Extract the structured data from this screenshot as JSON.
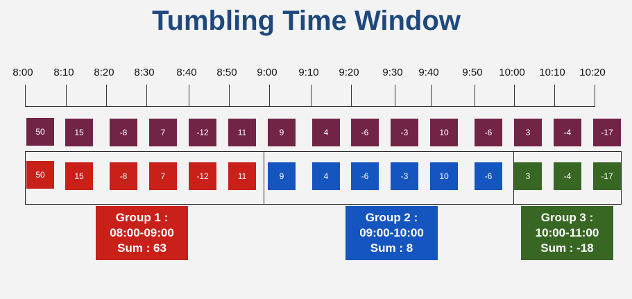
{
  "title": "Tumbling Time Window",
  "colors": {
    "title": "#1f497d",
    "event": "#722447",
    "group1": "#c9201a",
    "group2": "#1555c0",
    "group3": "#386724",
    "background": "#f3f3f3"
  },
  "timeline": {
    "ticks": [
      "8:00",
      "8:10",
      "8:20",
      "8:30",
      "8:40",
      "8:50",
      "9:00",
      "9:10",
      "9:20",
      "9:30",
      "9:40",
      "9:50",
      "10:00",
      "10:10",
      "10:20"
    ]
  },
  "events": [
    "50",
    "15",
    "-8",
    "7",
    "-12",
    "11",
    "9",
    "4",
    "-6",
    "-3",
    "10",
    "-6",
    "3",
    "-4",
    "-17"
  ],
  "groups": [
    {
      "line1": "Group 1 :",
      "line2": "08:00-09:00",
      "line3": "Sum : 63",
      "event_count": 6
    },
    {
      "line1": "Group 2 :",
      "line2": "09:00-10:00",
      "line3": "Sum : 8",
      "event_count": 6
    },
    {
      "line1": "Group 3 :",
      "line2": "10:00-11:00",
      "line3": "Sum : -18",
      "event_count": 3
    }
  ]
}
